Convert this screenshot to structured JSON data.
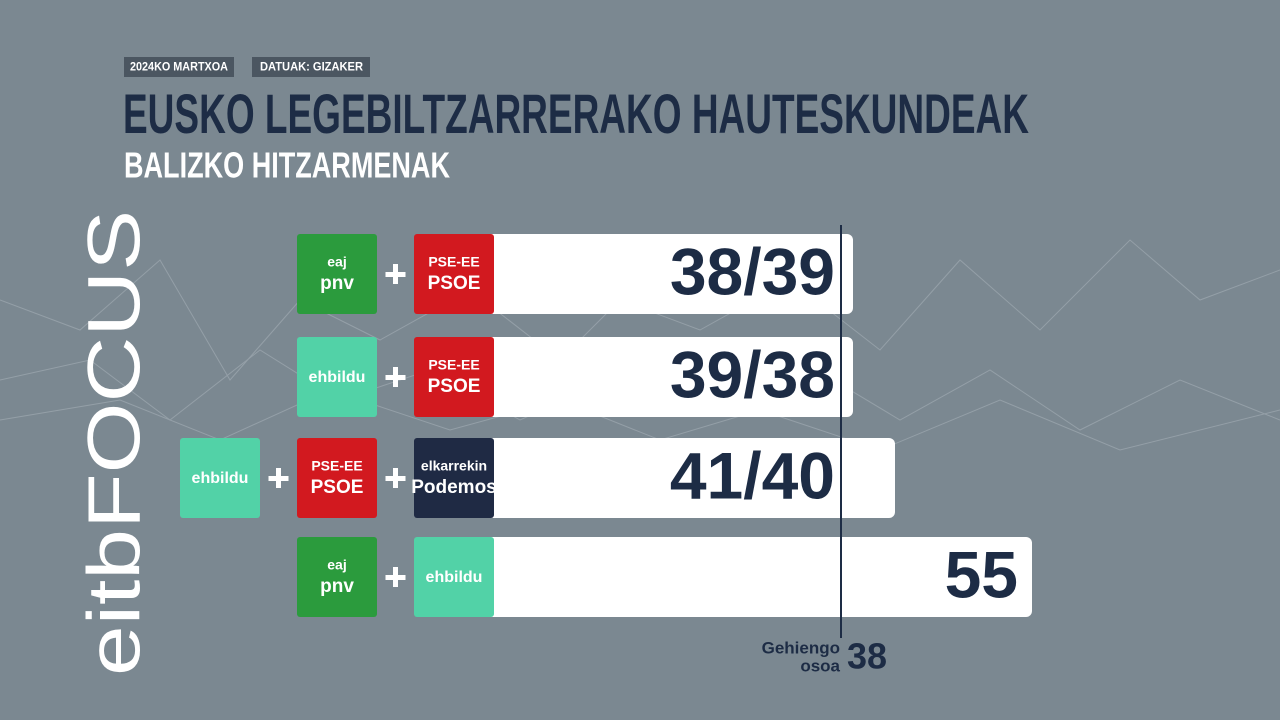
{
  "header": {
    "date": "2024KO MARTXOA",
    "source": "DATUAK: GIZAKER",
    "title": "EUSKO LEGEBILTZARRERAKO HAUTESKUNDEAK",
    "subtitle": "BALIZKO HITZARMENAK"
  },
  "rows": [
    {
      "parties": [
        {
          "lines": [
            "eaj",
            "pnv"
          ],
          "color": "#2b9b3d"
        },
        {
          "lines": [
            "PSE-EE",
            "PSOE"
          ],
          "color": "#d2191f"
        }
      ],
      "result": "38/39"
    },
    {
      "parties": [
        {
          "lines": [
            "ehbildu"
          ],
          "color": "#52d2a7"
        },
        {
          "lines": [
            "PSE-EE",
            "PSOE"
          ],
          "color": "#d2191f"
        }
      ],
      "result": "39/38"
    },
    {
      "parties": [
        {
          "lines": [
            "ehbildu"
          ],
          "color": "#52d2a7"
        },
        {
          "lines": [
            "PSE-EE",
            "PSOE"
          ],
          "color": "#d2191f"
        },
        {
          "lines": [
            "elkarrekin",
            "Podemos"
          ],
          "color": "#1f2a44"
        }
      ],
      "result": "41/40"
    },
    {
      "parties": [
        {
          "lines": [
            "eaj",
            "pnv"
          ],
          "color": "#2b9b3d"
        },
        {
          "lines": [
            "ehbildu"
          ],
          "color": "#52d2a7"
        }
      ],
      "result": "55"
    }
  ],
  "majority": {
    "label": [
      "Gehiengo",
      "osoa"
    ],
    "value": "38"
  },
  "brand": "eitbFOCUS"
}
